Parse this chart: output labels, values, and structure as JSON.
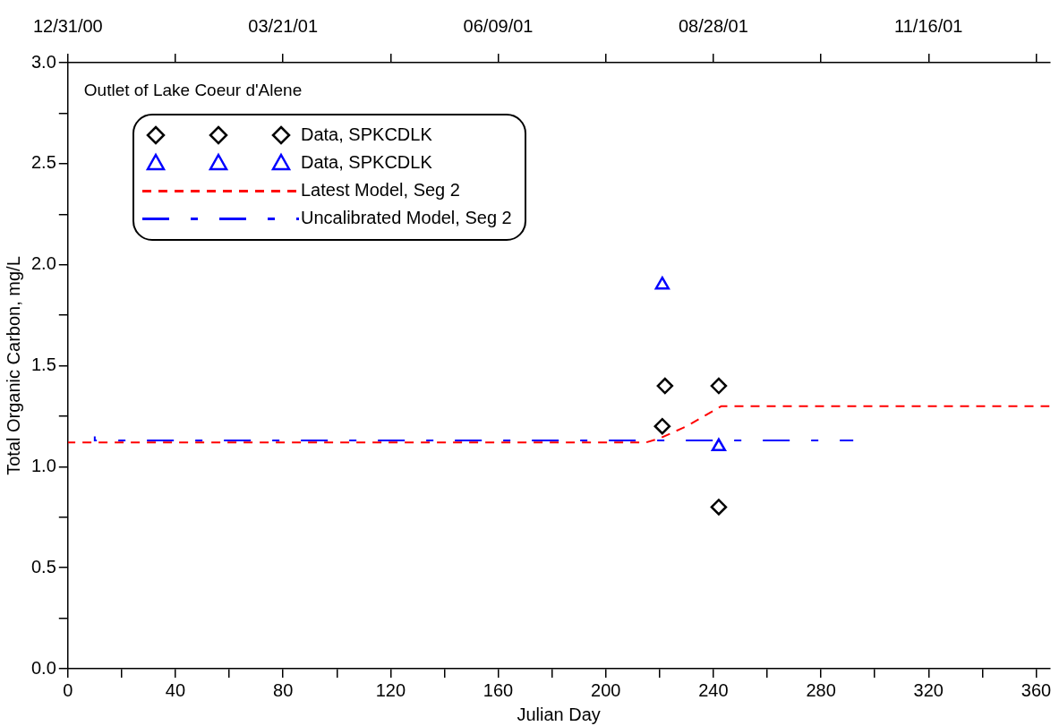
{
  "chart_data": {
    "type": "scatter",
    "xlabel": "Julian Day",
    "ylabel": "Total Organic Carbon, mg/L",
    "annotations": [
      "Outlet of Lake Coeur d'Alene"
    ],
    "xlim": [
      0,
      365
    ],
    "ylim": [
      0,
      3
    ],
    "xticks": [
      0,
      {
        "value": 20,
        "label": null
      },
      40,
      {
        "value": 60,
        "label": null
      },
      80,
      {
        "value": 100,
        "label": null
      },
      120,
      {
        "value": 140,
        "label": null
      },
      160,
      {
        "value": 180,
        "label": null
      },
      200,
      {
        "value": 220,
        "label": null
      },
      240,
      {
        "value": 260,
        "label": null
      },
      280,
      {
        "value": 300,
        "label": null
      },
      320,
      {
        "value": 340,
        "label": null
      },
      360
    ],
    "x2lim": [
      "2000-12-31",
      "2001-12-31"
    ],
    "x2ticks": [
      {
        "value": "2000-12-31",
        "label": "12/31/00"
      },
      {
        "value": "2001-02-09",
        "label": null
      },
      {
        "value": "2001-03-21",
        "label": "03/21/01"
      },
      {
        "value": "2001-04-30",
        "label": null
      },
      {
        "value": "2001-06-09",
        "label": "06/09/01"
      },
      {
        "value": "2001-07-19",
        "label": null
      },
      {
        "value": "2001-08-28",
        "label": "08/28/01"
      },
      {
        "value": "2001-10-07",
        "label": null
      },
      {
        "value": "2001-11-16",
        "label": "11/16/01"
      },
      {
        "value": "2001-12-26",
        "label": null
      }
    ],
    "yticks": [
      "0.0",
      {
        "value": 0.25,
        "label": null
      },
      {
        "value": 0.5,
        "label": "0.5"
      },
      {
        "value": 0.75,
        "label": null
      },
      {
        "value": 1,
        "label": "1.0"
      },
      {
        "value": 1.25,
        "label": null
      },
      {
        "value": 1.5,
        "label": "1.5"
      },
      {
        "value": 1.75,
        "label": null
      },
      {
        "value": 2,
        "label": "2.0"
      },
      {
        "value": 2.25,
        "label": null
      },
      {
        "value": 2.5,
        "label": "2.5"
      },
      {
        "value": 2.75,
        "label": null
      },
      {
        "value": 3,
        "label": "3.0"
      }
    ],
    "legend": "top left",
    "series": [
      {
        "name": "Data, SPKCDLK",
        "type": "scatter",
        "marker": "diamond",
        "color": "#000000",
        "x": [
          221,
          222,
          242,
          242
        ],
        "values": [
          1.2,
          1.4,
          1.4,
          0.8
        ]
      },
      {
        "name": "Data, SPKCDLK",
        "type": "scatter",
        "marker": "triangle",
        "color": "#0000ff",
        "x": [
          221,
          242
        ],
        "values": [
          1.9,
          1.1
        ]
      },
      {
        "name": "Latest Model, Seg 2",
        "type": "line",
        "line_style": "dashed",
        "color": "#ff0000",
        "x": [
          0,
          215,
          220,
          230,
          243,
          365
        ],
        "values": [
          1.12,
          1.12,
          1.14,
          1.2,
          1.3,
          1.3
        ]
      },
      {
        "name": "Uncalibrated Model, Seg 2",
        "type": "step",
        "line_style": "dashed",
        "color": "#0000ff",
        "x": [
          10,
          119,
          292
        ],
        "values": [
          1.15,
          1.13,
          1.13
        ]
      }
    ]
  }
}
